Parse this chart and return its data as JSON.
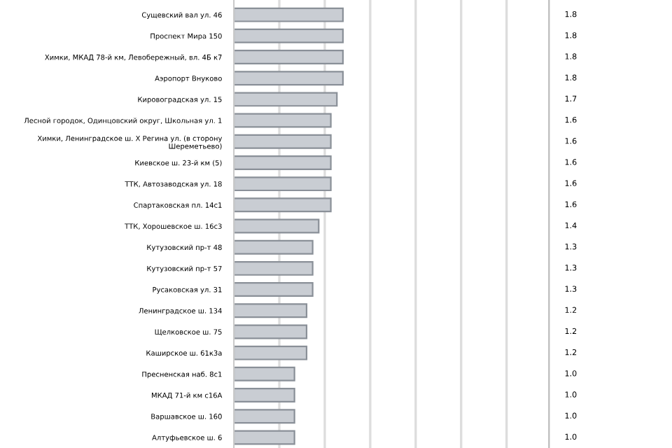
{
  "chart_data": {
    "type": "bar",
    "orientation": "horizontal",
    "categories": [
      "Сущевский вал ул. 46",
      "Проспект Мира 150",
      "Химки, МКАД 78-й км, Левобережный, вл. 4Б к7",
      "Аэропорт Внуково",
      "Кировоградская ул. 15",
      "Лесной городок, Одинцовский округ, Школьная ул. 1",
      "Химки, Ленинградское ш. Х Регина ул. (в сторону Шереметьево)",
      "Киевское ш. 23-й км (5)",
      "ТТК, Автозаводская ул. 18",
      "Спартаковская пл. 14с1",
      "ТТК, Хорошевское ш. 16с3",
      "Кутузовский пр-т 48",
      "Кутузовский пр-т 57",
      "Русаковская ул. 31",
      "Ленинградское ш. 134",
      "Щелковское ш. 75",
      "Каширское ш. 61к3а",
      "Пресненская наб. 8с1",
      "МКАД 71-й км с16А",
      "Варшавское ш. 160",
      "Алтуфьевское ш. 6"
    ],
    "values": [
      1.8,
      1.8,
      1.8,
      1.8,
      1.7,
      1.6,
      1.6,
      1.6,
      1.6,
      1.6,
      1.4,
      1.3,
      1.3,
      1.3,
      1.2,
      1.2,
      1.2,
      1.0,
      1.0,
      1.0,
      1.0
    ],
    "value_labels": [
      "1.8",
      "1.8",
      "1.8",
      "1.8",
      "1.7",
      "1.6",
      "1.6",
      "1.6",
      "1.6",
      "1.6",
      "1.4",
      "1.3",
      "1.3",
      "1.3",
      "1.2",
      "1.2",
      "1.2",
      "1.0",
      "1.0",
      "1.0",
      "1.0"
    ],
    "color": "#c9cdd3",
    "xlim": [
      0,
      5.2
    ],
    "xticks": [
      {
        "value": 0.75,
        "label": null
      },
      {
        "value": 1.5,
        "label": null
      },
      {
        "value": 2.25,
        "label": null
      },
      {
        "value": 3.0,
        "label": null
      },
      {
        "value": 3.75,
        "label": null
      },
      {
        "value": 4.5,
        "label": null
      }
    ],
    "grid": "x",
    "legend": false
  }
}
